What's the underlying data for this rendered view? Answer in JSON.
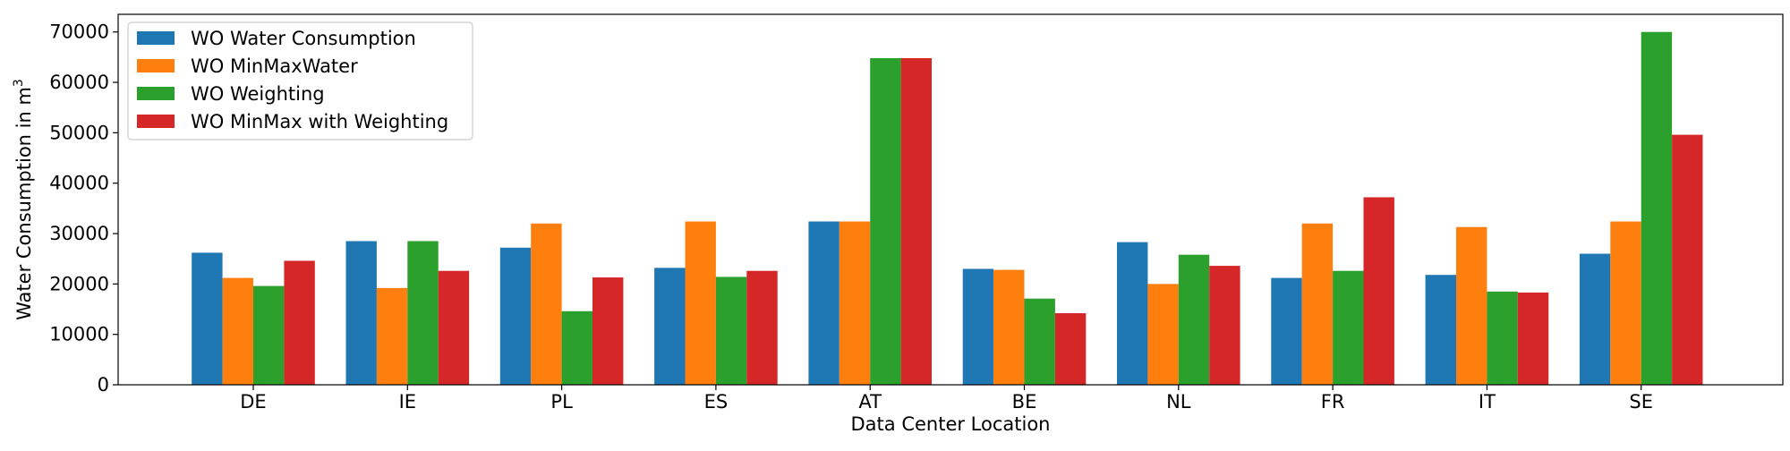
{
  "chart_data": {
    "type": "bar",
    "title": "",
    "xlabel": "Data Center Location",
    "ylabel": "Water Consumption in m",
    "ylabel_superscript": "3",
    "categories": [
      "DE",
      "IE",
      "PL",
      "ES",
      "AT",
      "BE",
      "NL",
      "FR",
      "IT",
      "SE"
    ],
    "ylim": [
      0,
      73500
    ],
    "yticks": [
      0,
      10000,
      20000,
      30000,
      40000,
      50000,
      60000,
      70000
    ],
    "grid": false,
    "legend_position": "top-left",
    "series": [
      {
        "name": "WO Water Consumption",
        "color": "#1f77b4",
        "values": [
          26200,
          28500,
          27200,
          23200,
          32400,
          23000,
          28300,
          21200,
          21800,
          26000
        ]
      },
      {
        "name": "WO MinMaxWater",
        "color": "#ff7f0e",
        "values": [
          21200,
          19200,
          32000,
          32400,
          32400,
          22800,
          20000,
          32000,
          31300,
          32400
        ]
      },
      {
        "name": "WO Weighting",
        "color": "#2ca02c",
        "values": [
          19600,
          28500,
          14600,
          21400,
          64800,
          17100,
          25800,
          22600,
          18500,
          70000
        ]
      },
      {
        "name": "WO MinMax with Weighting",
        "color": "#d62728",
        "values": [
          24600,
          22600,
          21300,
          22600,
          64800,
          14200,
          23600,
          37200,
          18300,
          49600
        ]
      }
    ]
  }
}
